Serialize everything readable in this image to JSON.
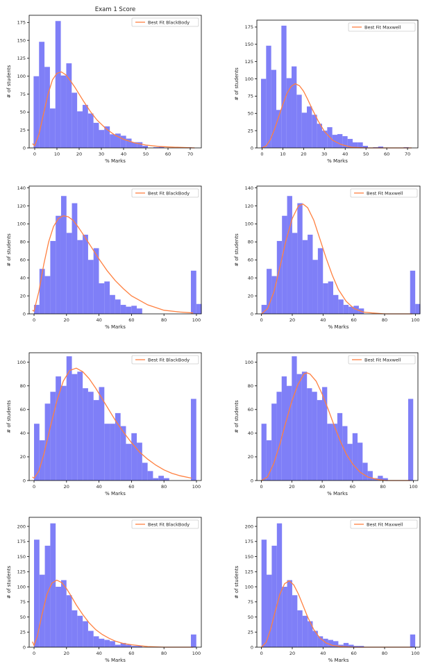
{
  "figure_title": "Exam 1 Score",
  "colors": {
    "bar": "#7f7ff7",
    "fit": "#ff8040",
    "axis": "#000000"
  },
  "chart_data": [
    {
      "type": "bar",
      "row": 0,
      "col": 0,
      "title": "Exam 1 Score",
      "xlabel": "% Marks",
      "ylabel": "# of students",
      "legend": "Best Fit BlackBody",
      "legend_position": "top-right",
      "xlim": [
        -2.5,
        75
      ],
      "ylim": [
        0,
        185
      ],
      "xticks": [
        0,
        10,
        20,
        30,
        40,
        50,
        60,
        70
      ],
      "yticks": [
        0,
        25,
        50,
        75,
        100,
        125,
        150,
        175
      ],
      "bin_start": -0.5,
      "bin_width": 2.45,
      "values": [
        100,
        148,
        113,
        55,
        177,
        101,
        118,
        77,
        51,
        60,
        48,
        35,
        25,
        30,
        19,
        20,
        17,
        13,
        8,
        8,
        3,
        0,
        1,
        2,
        0,
        0,
        0,
        0,
        1
      ],
      "fit_x": [
        -1,
        0,
        2,
        4,
        6,
        8,
        10,
        12,
        14,
        16,
        18,
        20,
        22,
        25,
        28,
        32,
        36,
        40,
        45,
        50,
        56,
        63,
        72
      ],
      "fit_y": [
        6,
        3,
        20,
        48,
        75,
        95,
        104,
        106,
        102,
        94,
        85,
        75,
        65,
        51,
        39,
        27,
        18,
        12,
        7,
        4,
        2,
        1,
        0
      ]
    },
    {
      "type": "bar",
      "row": 0,
      "col": 1,
      "title": "",
      "xlabel": "% Marks",
      "ylabel": "# of students",
      "legend": "Best Fit Maxwell",
      "legend_position": "top-right",
      "xlim": [
        -2.5,
        75
      ],
      "ylim": [
        0,
        185
      ],
      "xticks": [
        0,
        10,
        20,
        30,
        40,
        50,
        60,
        70
      ],
      "yticks": [
        0,
        25,
        50,
        75,
        100,
        125,
        150,
        175
      ],
      "bin_start": -0.5,
      "bin_width": 2.45,
      "values": [
        100,
        148,
        113,
        55,
        177,
        101,
        118,
        77,
        51,
        60,
        48,
        35,
        25,
        30,
        19,
        20,
        17,
        13,
        8,
        8,
        3,
        0,
        1,
        2,
        0,
        0,
        0,
        0,
        1
      ],
      "fit_x": [
        0,
        2,
        4,
        6,
        8,
        10,
        12,
        14,
        16,
        18,
        20,
        22,
        24,
        27,
        30,
        34,
        38,
        43,
        50,
        60,
        72
      ],
      "fit_y": [
        0,
        3,
        12,
        27,
        45,
        63,
        79,
        89,
        93,
        90,
        82,
        70,
        57,
        39,
        24,
        11,
        5,
        1,
        0,
        0,
        0
      ]
    },
    {
      "type": "bar",
      "row": 1,
      "col": 0,
      "title": "",
      "xlabel": "% Marks",
      "ylabel": "# of students",
      "legend": "Best Fit BlackBody",
      "legend_position": "top-right",
      "xlim": [
        -3,
        103
      ],
      "ylim": [
        0,
        142
      ],
      "xticks": [
        0,
        20,
        40,
        60,
        80,
        100
      ],
      "yticks": [
        0,
        20,
        40,
        60,
        80,
        100,
        120,
        140
      ],
      "bin_start": 0,
      "bin_width": 3.33,
      "values": [
        10,
        50,
        42,
        81,
        109,
        131,
        90,
        123,
        82,
        88,
        60,
        73,
        34,
        36,
        21,
        16,
        10,
        8,
        9,
        6,
        0,
        0,
        0,
        0,
        0,
        0,
        0,
        0,
        0,
        48,
        11
      ],
      "fit_x": [
        -1,
        0,
        3,
        6,
        9,
        12,
        15,
        18,
        21,
        24,
        27,
        30,
        35,
        40,
        45,
        50,
        55,
        60,
        70,
        80,
        90,
        98
      ],
      "fit_y": [
        4,
        3,
        25,
        55,
        80,
        97,
        106,
        109,
        108,
        104,
        97,
        89,
        75,
        61,
        48,
        37,
        28,
        20,
        10,
        4,
        2,
        1
      ]
    },
    {
      "type": "bar",
      "row": 1,
      "col": 1,
      "title": "",
      "xlabel": "% Marks",
      "ylabel": "# of students",
      "legend": "Best Fit Maxwell",
      "legend_position": "top-right",
      "xlim": [
        -3,
        103
      ],
      "ylim": [
        0,
        142
      ],
      "xticks": [
        0,
        20,
        40,
        60,
        80,
        100
      ],
      "yticks": [
        0,
        20,
        40,
        60,
        80,
        100,
        120,
        140
      ],
      "bin_start": 0,
      "bin_width": 3.33,
      "values": [
        10,
        50,
        42,
        81,
        109,
        131,
        90,
        123,
        82,
        88,
        60,
        73,
        34,
        36,
        21,
        16,
        10,
        8,
        9,
        6,
        0,
        0,
        0,
        0,
        0,
        0,
        0,
        0,
        0,
        48,
        11
      ],
      "fit_x": [
        0,
        4,
        8,
        12,
        16,
        20,
        24,
        27,
        30,
        34,
        38,
        42,
        46,
        50,
        55,
        60,
        66,
        72,
        80,
        90,
        98
      ],
      "fit_y": [
        0,
        6,
        24,
        52,
        82,
        106,
        120,
        122,
        118,
        104,
        83,
        62,
        43,
        27,
        14,
        6,
        2,
        1,
        0,
        0,
        0
      ]
    },
    {
      "type": "bar",
      "row": 2,
      "col": 0,
      "title": "",
      "xlabel": "% Marks",
      "ylabel": "# of students",
      "legend": "Best Fit BlackBody",
      "legend_position": "top-right",
      "xlim": [
        -3,
        103
      ],
      "ylim": [
        0,
        108
      ],
      "xticks": [
        0,
        20,
        40,
        60,
        80,
        100
      ],
      "yticks": [
        0,
        20,
        40,
        60,
        80,
        100
      ],
      "bin_start": 0,
      "bin_width": 3.33,
      "values": [
        48,
        34,
        65,
        75,
        88,
        80,
        105,
        90,
        92,
        78,
        75,
        68,
        79,
        48,
        48,
        57,
        46,
        31,
        40,
        32,
        15,
        8,
        2,
        4,
        2,
        0,
        0,
        0,
        0,
        69
      ],
      "fit_x": [
        -1,
        0,
        3,
        6,
        10,
        14,
        18,
        22,
        26,
        30,
        34,
        38,
        42,
        46,
        50,
        55,
        60,
        65,
        70,
        75,
        80,
        85,
        90,
        97
      ],
      "fit_y": [
        3,
        2,
        8,
        22,
        45,
        67,
        84,
        93,
        95,
        92,
        86,
        78,
        69,
        60,
        51,
        41,
        32,
        24,
        18,
        13,
        9,
        6,
        4,
        2
      ]
    },
    {
      "type": "bar",
      "row": 2,
      "col": 1,
      "title": "",
      "xlabel": "% Marks",
      "ylabel": "# of students",
      "legend": "Best Fit Maxwell",
      "legend_position": "top-right",
      "xlim": [
        -3,
        103
      ],
      "ylim": [
        0,
        108
      ],
      "xticks": [
        0,
        20,
        40,
        60,
        80,
        100
      ],
      "yticks": [
        0,
        20,
        40,
        60,
        80,
        100
      ],
      "bin_start": 0,
      "bin_width": 3.33,
      "values": [
        48,
        34,
        65,
        75,
        88,
        80,
        105,
        90,
        92,
        78,
        75,
        68,
        79,
        48,
        48,
        57,
        46,
        31,
        40,
        32,
        15,
        8,
        2,
        4,
        2,
        0,
        0,
        0,
        0,
        69
      ],
      "fit_x": [
        0,
        4,
        8,
        12,
        16,
        20,
        24,
        28,
        30,
        32,
        36,
        40,
        44,
        48,
        52,
        56,
        60,
        65,
        70,
        76,
        82,
        90,
        98
      ],
      "fit_y": [
        0,
        3,
        14,
        30,
        49,
        67,
        81,
        90,
        91,
        90,
        84,
        73,
        60,
        46,
        33,
        22,
        14,
        7,
        3,
        1,
        0,
        0,
        0
      ]
    },
    {
      "type": "bar",
      "row": 3,
      "col": 0,
      "title": "",
      "xlabel": "% Marks",
      "ylabel": "# of students",
      "legend": "Best Fit BlackBody",
      "legend_position": "top-right",
      "xlim": [
        -3,
        103
      ],
      "ylim": [
        0,
        215
      ],
      "xticks": [
        0,
        20,
        40,
        60,
        80,
        100
      ],
      "yticks": [
        0,
        25,
        50,
        75,
        100,
        125,
        150,
        175,
        200
      ],
      "bin_start": 0,
      "bin_width": 3.33,
      "values": [
        178,
        120,
        168,
        205,
        100,
        111,
        86,
        61,
        52,
        43,
        27,
        18,
        14,
        12,
        10,
        4,
        7,
        4,
        2,
        2,
        0,
        0,
        0,
        0,
        0,
        0,
        0,
        0,
        0,
        21
      ],
      "fit_x": [
        -1,
        0,
        2,
        5,
        8,
        11,
        14,
        17,
        20,
        23,
        26,
        30,
        34,
        38,
        42,
        46,
        50,
        55,
        60,
        70,
        80,
        90,
        98
      ],
      "fit_y": [
        9,
        3,
        18,
        55,
        88,
        106,
        111,
        107,
        97,
        84,
        70,
        54,
        40,
        29,
        21,
        15,
        10,
        6,
        4,
        1,
        0,
        0,
        0
      ]
    },
    {
      "type": "bar",
      "row": 3,
      "col": 1,
      "title": "",
      "xlabel": "% Marks",
      "ylabel": "# of students",
      "legend": "Best Fit Maxwell",
      "legend_position": "top-right",
      "xlim": [
        -3,
        103
      ],
      "ylim": [
        0,
        215
      ],
      "xticks": [
        0,
        20,
        40,
        60,
        80,
        100
      ],
      "yticks": [
        0,
        25,
        50,
        75,
        100,
        125,
        150,
        175,
        200
      ],
      "bin_start": 0,
      "bin_width": 3.33,
      "values": [
        178,
        120,
        168,
        205,
        100,
        111,
        86,
        61,
        52,
        43,
        27,
        18,
        14,
        12,
        10,
        4,
        7,
        4,
        2,
        2,
        0,
        0,
        0,
        0,
        0,
        0,
        0,
        0,
        0,
        21
      ],
      "fit_x": [
        0,
        3,
        6,
        9,
        12,
        15,
        18,
        21,
        24,
        27,
        30,
        34,
        38,
        42,
        46,
        52,
        60,
        70,
        80,
        98
      ],
      "fit_y": [
        0,
        8,
        30,
        60,
        88,
        105,
        110,
        103,
        88,
        69,
        50,
        29,
        15,
        7,
        3,
        1,
        0,
        0,
        0,
        0
      ]
    }
  ]
}
